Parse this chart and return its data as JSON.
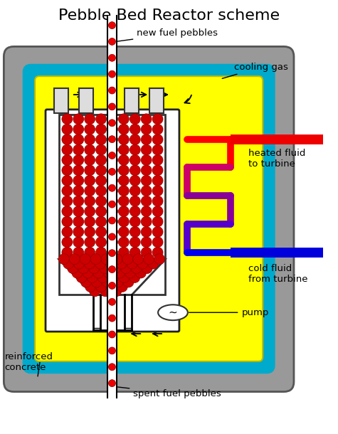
{
  "title": "Pebble Bed Reactor scheme",
  "title_fontsize": 16,
  "bg_color": "#ffffff",
  "gray_outer": "#999999",
  "cyan_border": "#00aacc",
  "yellow_fill": "#ffff00",
  "white_inner": "#ffffff",
  "red_pipe_color": "#ee0000",
  "blue_pipe_color": "#0000dd",
  "pebble_color": "#cc0000",
  "labels": {
    "new_fuel": "new fuel pebbles",
    "cooling_gas": "cooling gas",
    "heated_fluid": "heated fluid\nto turbine",
    "cold_fluid": "cold fluid\nfrom turbine",
    "pump": "pump",
    "reinforced": "reinforced\nconcrete",
    "spent_fuel": "spent fuel pebbles"
  }
}
